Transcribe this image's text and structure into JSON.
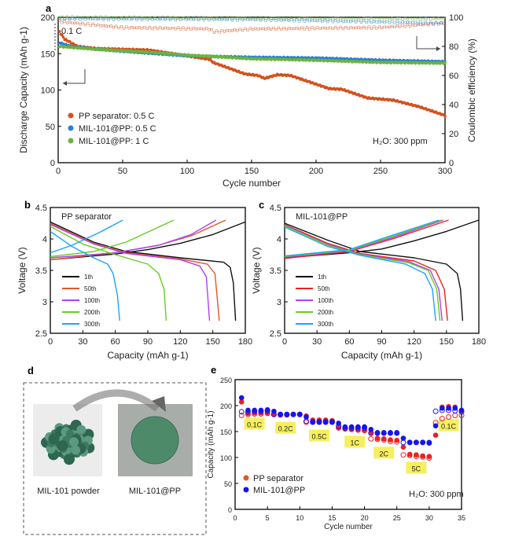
{
  "panel_labels": [
    "a",
    "b",
    "c",
    "d",
    "e"
  ],
  "chart_data": [
    {
      "type": "scatter",
      "panel": "a",
      "xlabel": "Cycle number",
      "ylabel": "Discharge Capacity (mAh g-1)",
      "y2label": "Coulombic efficiency (%)",
      "xlim": [
        0,
        300
      ],
      "ylim": [
        0,
        200
      ],
      "y2lim": [
        0,
        100
      ],
      "xticks": [
        0,
        50,
        100,
        150,
        200,
        250,
        300
      ],
      "yticks": [
        0,
        50,
        100,
        150,
        200
      ],
      "y2ticks": [
        0,
        20,
        40,
        60,
        80,
        100
      ],
      "annotations": {
        "rate": "0.1 C",
        "condition": "H2O: 300 ppm"
      },
      "series": [
        {
          "name": "PP separator: 0.5 C",
          "color": "#d4501c",
          "capacity": [
            [
              1,
              180
            ],
            [
              5,
              170
            ],
            [
              15,
              160
            ],
            [
              30,
              157
            ],
            [
              70,
              155
            ],
            [
              100,
              147
            ],
            [
              118,
              142
            ],
            [
              120,
              138
            ],
            [
              145,
              122
            ],
            [
              155,
              120
            ],
            [
              160,
              116
            ],
            [
              170,
              121
            ],
            [
              180,
              120
            ],
            [
              200,
              108
            ],
            [
              210,
              102
            ],
            [
              220,
              101
            ],
            [
              240,
              89
            ],
            [
              260,
              86
            ],
            [
              280,
              77
            ],
            [
              300,
              65
            ]
          ],
          "ce": [
            [
              1,
              97
            ],
            [
              50,
              93
            ],
            [
              118,
              92
            ],
            [
              120,
              90
            ],
            [
              150,
              92
            ],
            [
              250,
              93
            ],
            [
              300,
              96
            ]
          ]
        },
        {
          "name": "MIL-101@PP: 0.5 C",
          "color": "#2a7fd4",
          "capacity": [
            [
              1,
              165
            ],
            [
              10,
              160
            ],
            [
              30,
              156
            ],
            [
              60,
              152
            ],
            [
              100,
              147
            ],
            [
              150,
              145
            ],
            [
              200,
              144
            ],
            [
              250,
              141
            ],
            [
              300,
              139
            ]
          ],
          "ce": [
            [
              1,
              99
            ],
            [
              150,
              98.5
            ],
            [
              300,
              96
            ]
          ]
        },
        {
          "name": "MIL-101@PP: 1 C",
          "color": "#6db33f",
          "capacity": [
            [
              1,
              160
            ],
            [
              15,
              158
            ],
            [
              30,
              156
            ],
            [
              70,
              152
            ],
            [
              100,
              148
            ],
            [
              120,
              146
            ],
            [
              150,
              143
            ],
            [
              200,
              141
            ],
            [
              250,
              138
            ],
            [
              300,
              137
            ]
          ],
          "ce": [
            [
              1,
              100
            ],
            [
              300,
              99
            ]
          ]
        }
      ]
    },
    {
      "type": "line",
      "panel": "b",
      "title": "PP separator",
      "xlabel": "Capacity (mAh g-1)",
      "ylabel": "Voltage (V)",
      "xlim": [
        0,
        180
      ],
      "ylim": [
        2.5,
        4.5
      ],
      "xticks": [
        0,
        30,
        60,
        90,
        120,
        150,
        180
      ],
      "yticks": [
        2.5,
        3,
        3.5,
        4,
        4.5
      ],
      "series": [
        {
          "name": "1th",
          "color": "#111111",
          "charge": [
            [
              0,
              3.67
            ],
            [
              60,
              3.76
            ],
            [
              90,
              3.83
            ],
            [
              120,
              3.93
            ],
            [
              150,
              4.07
            ],
            [
              180,
              4.27
            ]
          ],
          "discharge": [
            [
              0,
              4.27
            ],
            [
              40,
              3.95
            ],
            [
              70,
              3.8
            ],
            [
              120,
              3.7
            ],
            [
              160,
              3.63
            ],
            [
              166,
              3.55
            ],
            [
              169,
              3.3
            ],
            [
              171,
              2.7
            ]
          ]
        },
        {
          "name": "50th",
          "color": "#e0582a",
          "charge": [
            [
              0,
              3.67
            ],
            [
              60,
              3.78
            ],
            [
              100,
              3.9
            ],
            [
              130,
              4.05
            ],
            [
              162,
              4.3
            ]
          ],
          "discharge": [
            [
              0,
              4.25
            ],
            [
              40,
              3.93
            ],
            [
              70,
              3.78
            ],
            [
              120,
              3.68
            ],
            [
              145,
              3.6
            ],
            [
              152,
              3.45
            ],
            [
              156,
              2.7
            ]
          ]
        },
        {
          "name": "100th",
          "color": "#b040f0",
          "charge": [
            [
              0,
              3.7
            ],
            [
              60,
              3.78
            ],
            [
              100,
              3.9
            ],
            [
              130,
              4.07
            ],
            [
              153,
              4.3
            ]
          ],
          "discharge": [
            [
              0,
              4.23
            ],
            [
              40,
              3.92
            ],
            [
              70,
              3.77
            ],
            [
              120,
              3.67
            ],
            [
              138,
              3.57
            ],
            [
              144,
              3.4
            ],
            [
              147,
              2.7
            ]
          ]
        },
        {
          "name": "200th",
          "color": "#66cc22",
          "charge": [
            [
              0,
              3.72
            ],
            [
              40,
              3.8
            ],
            [
              70,
              3.95
            ],
            [
              114,
              4.3
            ]
          ],
          "discharge": [
            [
              0,
              4.2
            ],
            [
              30,
              3.92
            ],
            [
              60,
              3.75
            ],
            [
              90,
              3.6
            ],
            [
              100,
              3.45
            ],
            [
              105,
              3.2
            ],
            [
              107,
              2.7
            ]
          ]
        },
        {
          "name": "300th",
          "color": "#1aa3ff",
          "charge": [
            [
              0,
              3.78
            ],
            [
              20,
              3.9
            ],
            [
              45,
              4.1
            ],
            [
              67,
              4.3
            ]
          ],
          "discharge": [
            [
              0,
              4.12
            ],
            [
              20,
              3.88
            ],
            [
              40,
              3.7
            ],
            [
              53,
              3.6
            ],
            [
              58,
              3.45
            ],
            [
              62,
              3.1
            ],
            [
              64,
              2.7
            ]
          ]
        }
      ]
    },
    {
      "type": "line",
      "panel": "c",
      "title": "MIL-101@PP",
      "xlabel": "Capacity (mAh g-1)",
      "ylabel": "Voltage (V)",
      "xlim": [
        0,
        180
      ],
      "ylim": [
        2.5,
        4.5
      ],
      "xticks": [
        0,
        30,
        60,
        90,
        120,
        150,
        180
      ],
      "yticks": [
        2.5,
        3,
        3.5,
        4,
        4.5
      ],
      "series": [
        {
          "name": "1th",
          "color": "#111111",
          "charge": [
            [
              0,
              3.7
            ],
            [
              60,
              3.78
            ],
            [
              90,
              3.84
            ],
            [
              120,
              3.97
            ],
            [
              150,
              4.12
            ],
            [
              180,
              4.3
            ]
          ],
          "discharge": [
            [
              0,
              4.25
            ],
            [
              40,
              3.98
            ],
            [
              70,
              3.8
            ],
            [
              120,
              3.7
            ],
            [
              150,
              3.6
            ],
            [
              160,
              3.45
            ],
            [
              163,
              3.2
            ],
            [
              165,
              2.7
            ]
          ]
        },
        {
          "name": "50th",
          "color": "#ee2222",
          "charge": [
            [
              0,
              3.69
            ],
            [
              60,
              3.8
            ],
            [
              100,
              4.0
            ],
            [
              152,
              4.3
            ]
          ],
          "discharge": [
            [
              0,
              4.23
            ],
            [
              40,
              3.93
            ],
            [
              70,
              3.77
            ],
            [
              120,
              3.65
            ],
            [
              140,
              3.5
            ],
            [
              148,
              3.2
            ],
            [
              151,
              2.7
            ]
          ]
        },
        {
          "name": "100th",
          "color": "#b040f0",
          "charge": [
            [
              0,
              3.71
            ],
            [
              60,
              3.81
            ],
            [
              100,
              4.02
            ],
            [
              147,
              4.3
            ]
          ],
          "discharge": [
            [
              0,
              4.22
            ],
            [
              40,
              3.91
            ],
            [
              70,
              3.76
            ],
            [
              115,
              3.64
            ],
            [
              135,
              3.5
            ],
            [
              143,
              3.2
            ],
            [
              146,
              2.7
            ]
          ]
        },
        {
          "name": "200th",
          "color": "#66cc22",
          "charge": [
            [
              0,
              3.72
            ],
            [
              60,
              3.82
            ],
            [
              100,
              4.04
            ],
            [
              145,
              4.3
            ]
          ],
          "discharge": [
            [
              0,
              4.21
            ],
            [
              40,
              3.9
            ],
            [
              70,
              3.75
            ],
            [
              115,
              3.62
            ],
            [
              133,
              3.5
            ],
            [
              141,
              3.2
            ],
            [
              144,
              2.7
            ]
          ]
        },
        {
          "name": "300th",
          "color": "#1aa3ff",
          "charge": [
            [
              0,
              3.73
            ],
            [
              60,
              3.83
            ],
            [
              100,
              4.06
            ],
            [
              143,
              4.3
            ]
          ],
          "discharge": [
            [
              0,
              4.19
            ],
            [
              40,
              3.88
            ],
            [
              70,
              3.74
            ],
            [
              112,
              3.6
            ],
            [
              130,
              3.45
            ],
            [
              137,
              3.2
            ],
            [
              140,
              2.7
            ]
          ]
        }
      ]
    },
    {
      "type": "scatter",
      "panel": "e",
      "xlabel": "Cycle number",
      "ylabel": "Capacity (mAh g-1)",
      "xlim": [
        0,
        35
      ],
      "ylim": [
        0,
        250
      ],
      "xticks": [
        0,
        5,
        10,
        15,
        20,
        25,
        30,
        35
      ],
      "yticks": [
        0,
        50,
        100,
        150,
        200,
        250
      ],
      "annotations": {
        "condition": "H2O: 300 ppm"
      },
      "rate_labels": [
        {
          "text": "0.1C",
          "x": 3,
          "y": 163
        },
        {
          "text": "0.2C",
          "x": 7.8,
          "y": 155
        },
        {
          "text": "0.5C",
          "x": 13,
          "y": 140
        },
        {
          "text": "1C",
          "x": 18.5,
          "y": 128
        },
        {
          "text": "2C",
          "x": 23,
          "y": 107
        },
        {
          "text": "5C",
          "x": 28,
          "y": 78
        },
        {
          "text": "0.1C",
          "x": 33,
          "y": 160
        }
      ],
      "series": [
        {
          "name": "PP separator",
          "color": "#ee2020",
          "filled": [
            207,
            185,
            186,
            186,
            186,
            183,
            183,
            183,
            183,
            183,
            180,
            172,
            172,
            172,
            171,
            158,
            155,
            155,
            153,
            152,
            148,
            137,
            136,
            134,
            133,
            120,
            106,
            105,
            103,
            102,
            143,
            197,
            198,
            197,
            190
          ],
          "open": [
            181,
            183,
            184,
            184,
            185,
            183,
            182,
            182,
            183,
            183,
            168,
            170,
            170,
            170,
            170,
            157,
            155,
            154,
            153,
            152,
            136,
            135,
            134,
            131,
            130,
            105,
            104,
            102,
            101,
            99,
            167,
            175,
            178,
            181,
            181
          ]
        },
        {
          "name": "MIL-101@PP",
          "color": "#1515ee",
          "filled": [
            215,
            191,
            191,
            191,
            192,
            189,
            183,
            183,
            183,
            183,
            178,
            169,
            169,
            169,
            169,
            166,
            159,
            159,
            159,
            159,
            154,
            148,
            148,
            148,
            148,
            137,
            129,
            129,
            129,
            129,
            161,
            195,
            195,
            195,
            191
          ],
          "open": [
            188,
            188,
            189,
            189,
            190,
            183,
            183,
            183,
            183,
            183,
            170,
            168,
            168,
            168,
            168,
            160,
            157,
            157,
            157,
            157,
            147,
            147,
            147,
            147,
            147,
            129,
            129,
            129,
            129,
            128,
            189,
            191,
            191,
            190,
            188
          ]
        }
      ]
    }
  ],
  "panel_d": {
    "left_caption": "MIL-101 powder",
    "right_caption": "MIL-101@PP"
  }
}
